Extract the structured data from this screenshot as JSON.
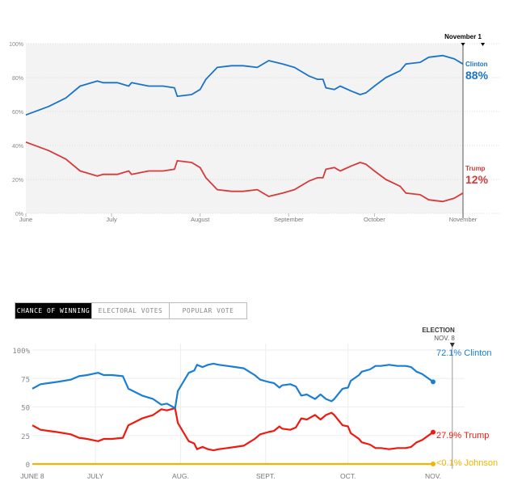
{
  "chart_data": [
    {
      "type": "line",
      "title": "",
      "xlabel": "",
      "ylabel": "",
      "ylim": [
        0,
        100
      ],
      "y_ticks": [
        "0%",
        "20%",
        "40%",
        "60%",
        "80%",
        "100%"
      ],
      "x_ticks": [
        {
          "label": "June",
          "date": "Jun 1"
        },
        {
          "label": "July",
          "date": "Jul 1"
        },
        {
          "label": "August",
          "date": "Aug 1"
        },
        {
          "label": "September",
          "date": "Sep 1"
        },
        {
          "label": "October",
          "date": "Oct 1"
        },
        {
          "label": "November",
          "date": "Nov 1"
        }
      ],
      "grid": true,
      "marker_label": "November 1",
      "series": [
        {
          "name": "Clinton",
          "end_label": "88%",
          "color": "#1a73c7",
          "points": [
            [
              "Jun 1",
              58
            ],
            [
              "Jun 9",
              63
            ],
            [
              "Jun 15",
              68
            ],
            [
              "Jun 20",
              75
            ],
            [
              "Jun 26",
              78
            ],
            [
              "Jun 28",
              77
            ],
            [
              "Jul 3",
              77
            ],
            [
              "Jul 7",
              75
            ],
            [
              "Jul 8",
              77
            ],
            [
              "Jul 14",
              75
            ],
            [
              "Jul 19",
              75
            ],
            [
              "Jul 23",
              74
            ],
            [
              "Jul 24",
              69
            ],
            [
              "Jul 29",
              70
            ],
            [
              "Aug 1",
              73
            ],
            [
              "Aug 3",
              79
            ],
            [
              "Aug 7",
              86
            ],
            [
              "Aug 12",
              87
            ],
            [
              "Aug 16",
              87
            ],
            [
              "Aug 21",
              86
            ],
            [
              "Aug 25",
              90
            ],
            [
              "Aug 30",
              88
            ],
            [
              "Sep 3",
              86
            ],
            [
              "Sep 8",
              81
            ],
            [
              "Sep 11",
              79
            ],
            [
              "Sep 13",
              79
            ],
            [
              "Sep 14",
              74
            ],
            [
              "Sep 17",
              73
            ],
            [
              "Sep 19",
              75
            ],
            [
              "Sep 23",
              72
            ],
            [
              "Sep 26",
              70
            ],
            [
              "Sep 28",
              71
            ],
            [
              "Oct 1",
              75
            ],
            [
              "Oct 5",
              80
            ],
            [
              "Oct 10",
              84
            ],
            [
              "Oct 12",
              88
            ],
            [
              "Oct 17",
              89
            ],
            [
              "Oct 20",
              92
            ],
            [
              "Oct 25",
              93
            ],
            [
              "Oct 29",
              91
            ],
            [
              "Nov 1",
              88
            ]
          ]
        },
        {
          "name": "Trump",
          "end_label": "12%",
          "color": "#d63a3a",
          "points": [
            [
              "Jun 1",
              42
            ],
            [
              "Jun 9",
              37
            ],
            [
              "Jun 15",
              32
            ],
            [
              "Jun 20",
              25
            ],
            [
              "Jun 26",
              22
            ],
            [
              "Jun 28",
              23
            ],
            [
              "Jul 3",
              23
            ],
            [
              "Jul 7",
              25
            ],
            [
              "Jul 8",
              23
            ],
            [
              "Jul 14",
              25
            ],
            [
              "Jul 19",
              25
            ],
            [
              "Jul 23",
              26
            ],
            [
              "Jul 24",
              31
            ],
            [
              "Jul 29",
              30
            ],
            [
              "Aug 1",
              27
            ],
            [
              "Aug 3",
              21
            ],
            [
              "Aug 7",
              14
            ],
            [
              "Aug 12",
              13
            ],
            [
              "Aug 16",
              13
            ],
            [
              "Aug 21",
              14
            ],
            [
              "Aug 25",
              10
            ],
            [
              "Aug 30",
              12
            ],
            [
              "Sep 3",
              14
            ],
            [
              "Sep 8",
              19
            ],
            [
              "Sep 11",
              21
            ],
            [
              "Sep 13",
              21
            ],
            [
              "Sep 14",
              26
            ],
            [
              "Sep 17",
              27
            ],
            [
              "Sep 19",
              25
            ],
            [
              "Sep 23",
              28
            ],
            [
              "Sep 26",
              30
            ],
            [
              "Sep 28",
              29
            ],
            [
              "Oct 1",
              25
            ],
            [
              "Oct 5",
              20
            ],
            [
              "Oct 10",
              16
            ],
            [
              "Oct 12",
              12
            ],
            [
              "Oct 17",
              11
            ],
            [
              "Oct 20",
              8
            ],
            [
              "Oct 25",
              7
            ],
            [
              "Oct 29",
              9
            ],
            [
              "Nov 1",
              12
            ]
          ]
        }
      ]
    },
    {
      "type": "line",
      "title": "",
      "xlabel": "",
      "ylabel": "",
      "ylim": [
        0,
        100
      ],
      "y_ticks": [
        "0",
        "25",
        "50",
        "75",
        "100%"
      ],
      "x_ticks": [
        {
          "label": "JUNE 8",
          "date": "Jun 8"
        },
        {
          "label": "JULY",
          "date": "Jul 1"
        },
        {
          "label": "AUG.",
          "date": "Aug 1"
        },
        {
          "label": "SEPT.",
          "date": "Sep 1"
        },
        {
          "label": "OCT.",
          "date": "Oct 1"
        },
        {
          "label": "NOV.",
          "date": "Nov 1"
        }
      ],
      "grid": true,
      "marker_label": "ELECTION",
      "marker_sublabel": "NOV. 8",
      "series": [
        {
          "name": "Clinton",
          "end_label": "72.1% Clinton",
          "color": "#1a7fd4",
          "points": [
            [
              "Jun 8",
              66
            ],
            [
              "Jun 11",
              70
            ],
            [
              "Jun 14",
              71
            ],
            [
              "Jun 17",
              72
            ],
            [
              "Jun 22",
              74
            ],
            [
              "Jun 25",
              77
            ],
            [
              "Jun 28",
              78
            ],
            [
              "Jun 30",
              79
            ],
            [
              "Jul 2",
              80
            ],
            [
              "Jul 4",
              78
            ],
            [
              "Jul 7",
              78
            ],
            [
              "Jul 11",
              77
            ],
            [
              "Jul 13",
              66
            ],
            [
              "Jul 18",
              60
            ],
            [
              "Jul 22",
              57
            ],
            [
              "Jul 25",
              52
            ],
            [
              "Jul 27",
              53
            ],
            [
              "Jul 30",
              49
            ],
            [
              "Jul 31",
              64
            ],
            [
              "Aug 2",
              72
            ],
            [
              "Aug 4",
              80
            ],
            [
              "Aug 6",
              82
            ],
            [
              "Aug 7",
              87
            ],
            [
              "Aug 9",
              85
            ],
            [
              "Aug 11",
              87
            ],
            [
              "Aug 13",
              88
            ],
            [
              "Aug 15",
              87
            ],
            [
              "Aug 18",
              86
            ],
            [
              "Aug 21",
              85
            ],
            [
              "Aug 24",
              84
            ],
            [
              "Aug 26",
              81
            ],
            [
              "Aug 28",
              78
            ],
            [
              "Aug 30",
              74
            ],
            [
              "Sep 2",
              72
            ],
            [
              "Sep 4",
              71
            ],
            [
              "Sep 6",
              67
            ],
            [
              "Sep 7",
              69
            ],
            [
              "Sep 10",
              70
            ],
            [
              "Sep 12",
              68
            ],
            [
              "Sep 14",
              60
            ],
            [
              "Sep 16",
              61
            ],
            [
              "Sep 19",
              57
            ],
            [
              "Sep 21",
              61
            ],
            [
              "Sep 23",
              57
            ],
            [
              "Sep 25",
              55
            ],
            [
              "Sep 26",
              57
            ],
            [
              "Sep 29",
              66
            ],
            [
              "Oct 1",
              67
            ],
            [
              "Oct 2",
              73
            ],
            [
              "Oct 5",
              78
            ],
            [
              "Oct 6",
              81
            ],
            [
              "Oct 9",
              83
            ],
            [
              "Oct 11",
              86
            ],
            [
              "Oct 13",
              86
            ],
            [
              "Oct 16",
              87
            ],
            [
              "Oct 19",
              86
            ],
            [
              "Oct 22",
              86
            ],
            [
              "Oct 24",
              85
            ],
            [
              "Oct 26",
              81
            ],
            [
              "Oct 28",
              79
            ],
            [
              "Nov 1",
              72.1
            ]
          ]
        },
        {
          "name": "Trump",
          "end_label": "27.9% Trump",
          "color": "#f0190f",
          "points": [
            [
              "Jun 8",
              34
            ],
            [
              "Jun 11",
              30
            ],
            [
              "Jun 14",
              29
            ],
            [
              "Jun 17",
              28
            ],
            [
              "Jun 22",
              26
            ],
            [
              "Jun 25",
              23
            ],
            [
              "Jun 28",
              22
            ],
            [
              "Jun 30",
              21
            ],
            [
              "Jul 2",
              20
            ],
            [
              "Jul 4",
              22
            ],
            [
              "Jul 7",
              22
            ],
            [
              "Jul 11",
              23
            ],
            [
              "Jul 13",
              34
            ],
            [
              "Jul 18",
              40
            ],
            [
              "Jul 22",
              43
            ],
            [
              "Jul 25",
              48
            ],
            [
              "Jul 27",
              47
            ],
            [
              "Jul 30",
              49
            ],
            [
              "Jul 31",
              36
            ],
            [
              "Aug 2",
              28
            ],
            [
              "Aug 4",
              20
            ],
            [
              "Aug 6",
              18
            ],
            [
              "Aug 7",
              13
            ],
            [
              "Aug 9",
              15
            ],
            [
              "Aug 11",
              13
            ],
            [
              "Aug 13",
              12
            ],
            [
              "Aug 15",
              13
            ],
            [
              "Aug 18",
              14
            ],
            [
              "Aug 21",
              15
            ],
            [
              "Aug 24",
              16
            ],
            [
              "Aug 26",
              19
            ],
            [
              "Aug 28",
              22
            ],
            [
              "Aug 30",
              26
            ],
            [
              "Sep 2",
              28
            ],
            [
              "Sep 4",
              29
            ],
            [
              "Sep 6",
              33
            ],
            [
              "Sep 7",
              31
            ],
            [
              "Sep 10",
              30
            ],
            [
              "Sep 12",
              32
            ],
            [
              "Sep 14",
              40
            ],
            [
              "Sep 16",
              39
            ],
            [
              "Sep 19",
              43
            ],
            [
              "Sep 21",
              39
            ],
            [
              "Sep 23",
              43
            ],
            [
              "Sep 25",
              45
            ],
            [
              "Sep 26",
              43
            ],
            [
              "Sep 29",
              34
            ],
            [
              "Oct 1",
              33
            ],
            [
              "Oct 2",
              27
            ],
            [
              "Oct 5",
              22
            ],
            [
              "Oct 6",
              19
            ],
            [
              "Oct 9",
              17
            ],
            [
              "Oct 11",
              14
            ],
            [
              "Oct 13",
              14
            ],
            [
              "Oct 16",
              13
            ],
            [
              "Oct 19",
              14
            ],
            [
              "Oct 22",
              14
            ],
            [
              "Oct 24",
              15
            ],
            [
              "Oct 26",
              19
            ],
            [
              "Oct 28",
              21
            ],
            [
              "Nov 1",
              27.9
            ]
          ]
        },
        {
          "name": "Johnson",
          "end_label": "<0.1% Johnson",
          "color": "#f2b400",
          "points": [
            [
              "Jun 8",
              0
            ],
            [
              "Nov 1",
              0
            ]
          ]
        }
      ]
    }
  ],
  "tabs": [
    {
      "label": "CHANCE OF WINNING",
      "active": true
    },
    {
      "label": "ELECTORAL VOTES",
      "active": false
    },
    {
      "label": "POPULAR VOTE",
      "active": false
    }
  ]
}
